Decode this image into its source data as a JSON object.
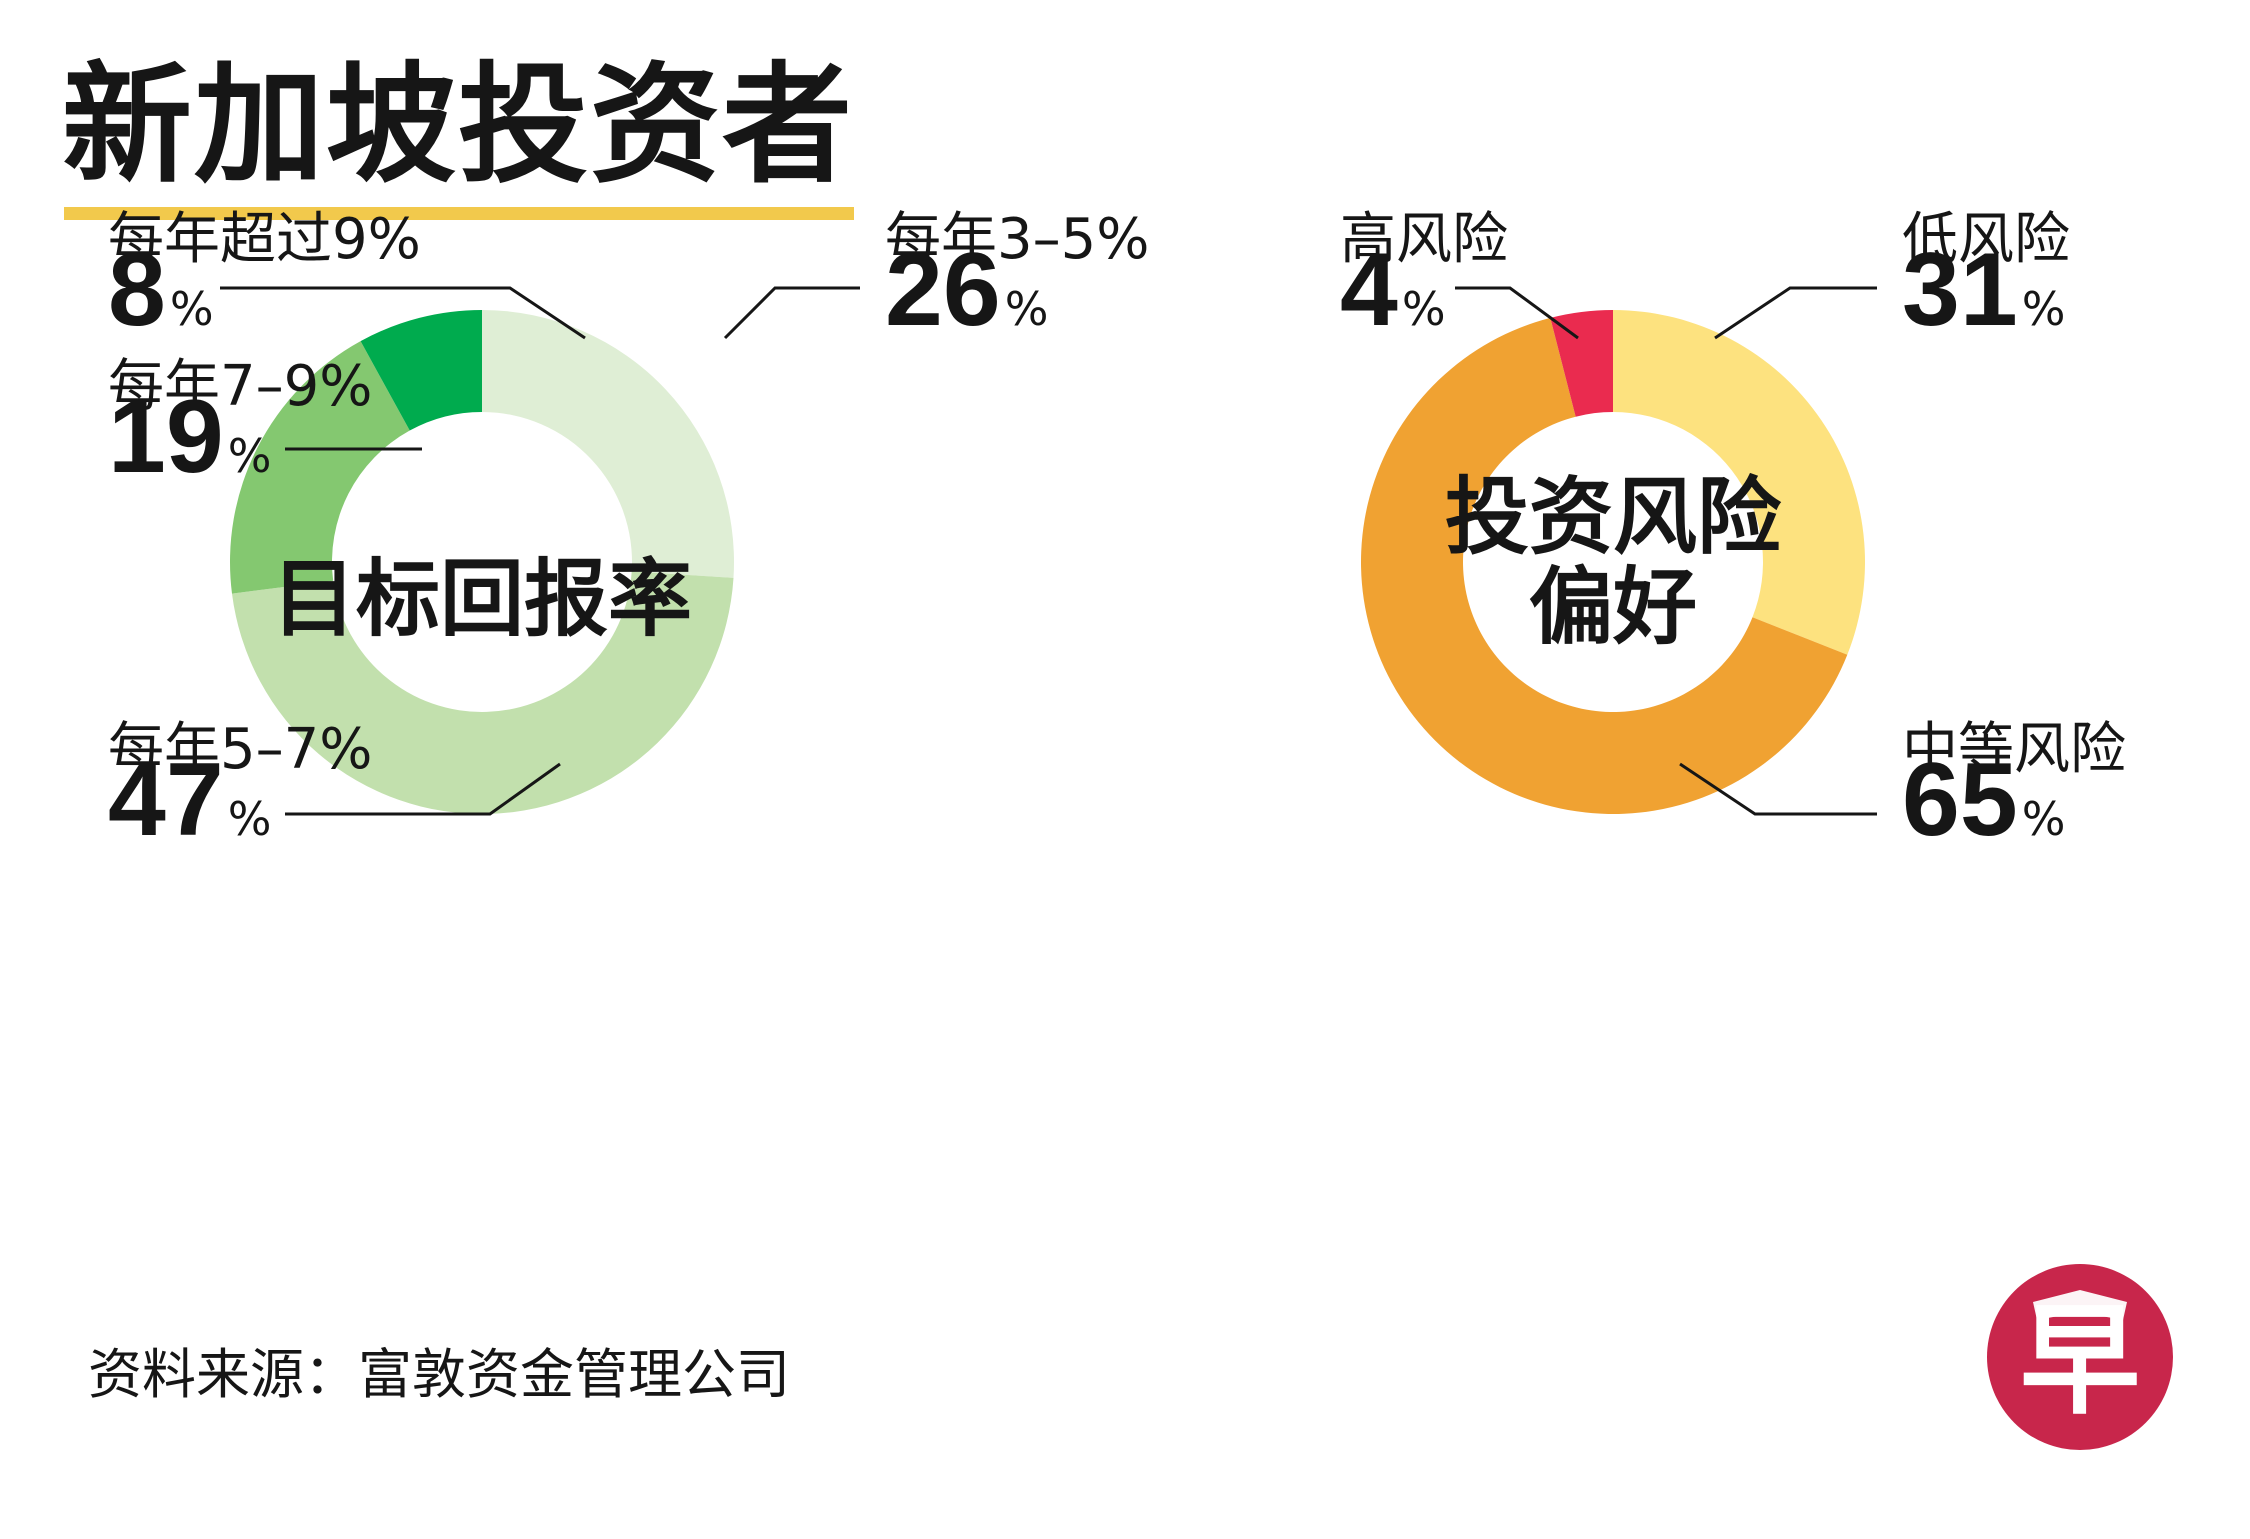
{
  "title": "新加坡投资者",
  "source": "资料来源：富敦资金管理公司",
  "logo_text": "早",
  "colors": {
    "title_underline": "#f2c94c",
    "logo": "#c8264b",
    "leader_line": "#161616"
  },
  "chart_data": [
    {
      "type": "pie",
      "center_label": [
        "目标回报率"
      ],
      "slices": [
        {
          "label": "每年3–5%",
          "value": 26,
          "color": "#dfeed5"
        },
        {
          "label": "每年5–7%",
          "value": 47,
          "color": "#c2e0ad"
        },
        {
          "label": "每年7–9%",
          "value": 19,
          "color": "#84c870"
        },
        {
          "label": "每年超过9%",
          "value": 8,
          "color": "#00ab4e"
        }
      ]
    },
    {
      "type": "pie",
      "center_label": [
        "投资风险",
        "偏好"
      ],
      "slices": [
        {
          "label": "低风险",
          "value": 31,
          "color": "#fde27f"
        },
        {
          "label": "中等风险",
          "value": 65,
          "color": "#f0a232"
        },
        {
          "label": "高风险",
          "value": 4,
          "color": "#ea2b4f"
        }
      ]
    }
  ]
}
